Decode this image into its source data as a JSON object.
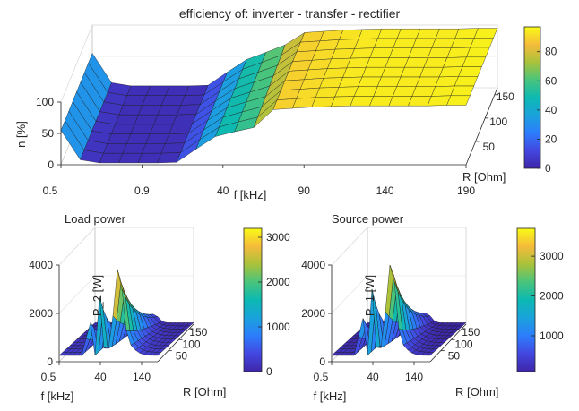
{
  "chart_data": [
    {
      "type": "surface",
      "title": "efficiency of: inverter - transfer - rectifier",
      "xlabel": "f [kHz]",
      "ylabel": "R [Ohm]",
      "zlabel": "n [%]",
      "x_ticks": [
        "0.5",
        "0.9",
        "40",
        "90",
        "140",
        "190"
      ],
      "y_ticks": [
        "50",
        "100",
        "150"
      ],
      "z_ticks": [
        "0",
        "50",
        "100"
      ],
      "zlim": [
        0,
        100
      ],
      "colorbar": {
        "ticks": [
          "0",
          "20",
          "40",
          "60",
          "80"
        ],
        "range": [
          0,
          97
        ]
      },
      "f_kHz": [
        0.5,
        0.7,
        0.9,
        10,
        20,
        40,
        50,
        60,
        70,
        80,
        90,
        100,
        110,
        120,
        130,
        140,
        150,
        160,
        170,
        180,
        190,
        200
      ],
      "R_Ohm": [
        10,
        30,
        50,
        70,
        90,
        110,
        130,
        150,
        170
      ],
      "efficiency_profile_pct": [
        55,
        8,
        3,
        3,
        3,
        3,
        4,
        25,
        45,
        62,
        82,
        88,
        90,
        92,
        93,
        94,
        94,
        94,
        94,
        94,
        95,
        95
      ]
    },
    {
      "type": "surface",
      "title": "Load power",
      "xlabel": "f [kHz]",
      "ylabel": "R [Ohm]",
      "zlabel": "P_2 [W]",
      "x_ticks": [
        "0.5",
        "40",
        "140"
      ],
      "y_ticks": [
        "50",
        "100",
        "150"
      ],
      "z_ticks": [
        "0",
        "2000",
        "4000"
      ],
      "zlim": [
        0,
        4000
      ],
      "colorbar": {
        "ticks": [
          "0",
          "1000",
          "2000",
          "3000"
        ],
        "range": [
          0,
          3200
        ]
      },
      "peaks": [
        {
          "f_kHz": 40,
          "value_W": 2300
        },
        {
          "f_kHz": 60,
          "value_W": 3100
        },
        {
          "f_kHz": 90,
          "value_W": 3250
        }
      ]
    },
    {
      "type": "surface",
      "title": "Source power",
      "xlabel": "f [kHz]",
      "ylabel": "R [Ohm]",
      "zlabel": "P_1 [W]",
      "x_ticks": [
        "0.5",
        "40",
        "140"
      ],
      "y_ticks": [
        "50",
        "100",
        "150"
      ],
      "z_ticks": [
        "0",
        "2000",
        "4000"
      ],
      "zlim": [
        0,
        4000
      ],
      "colorbar": {
        "ticks": [
          "1000",
          "2000",
          "3000"
        ],
        "range": [
          100,
          3700
        ]
      },
      "peaks": [
        {
          "f_kHz": 40,
          "value_W": 2600
        },
        {
          "f_kHz": 60,
          "value_W": 3500
        },
        {
          "f_kHz": 90,
          "value_W": 3650
        }
      ]
    }
  ]
}
